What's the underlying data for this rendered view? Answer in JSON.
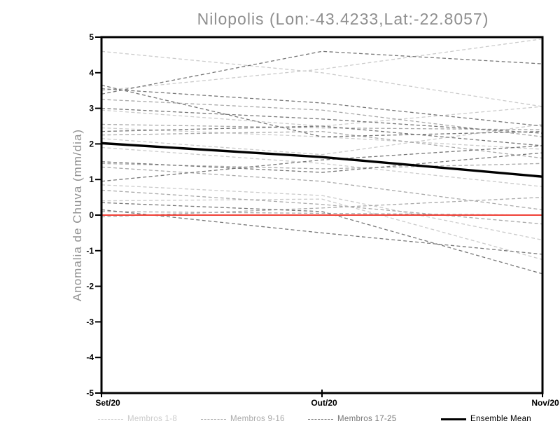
{
  "chart_data": {
    "type": "line",
    "title": "Nilopolis (Lon:-43.4233,Lat:-22.8057)",
    "ylabel": "Anomalia de Chuva (mm/dia)",
    "x_categories": [
      "Set/20",
      "Out/20",
      "Nov/20"
    ],
    "ylim": [
      -5,
      5
    ],
    "yticks": [
      -5,
      -4,
      -3,
      -2,
      -1,
      0,
      1,
      2,
      3,
      4,
      5
    ],
    "grid": false,
    "legend_position": "bottom",
    "axis_color": "#000000",
    "title_color": "#8f8f8f",
    "series_groups": [
      {
        "name": "Membros 1-8",
        "color": "#cbcbcb",
        "line_style": "dashed",
        "series": [
          [
            4.6,
            4.0,
            3.05
          ],
          [
            3.5,
            4.1,
            4.95
          ],
          [
            2.95,
            2.5,
            3.05
          ],
          [
            2.45,
            2.2,
            1.85
          ],
          [
            2.15,
            1.7,
            2.55
          ],
          [
            1.9,
            1.45,
            0.8
          ],
          [
            0.85,
            0.55,
            -0.7
          ],
          [
            0.4,
            0.45,
            -1.25
          ]
        ]
      },
      {
        "name": "Membros 9-16",
        "color": "#a9a9a9",
        "line_style": "dashed",
        "series": [
          [
            3.25,
            2.95,
            2.2
          ],
          [
            2.55,
            2.45,
            2.4
          ],
          [
            2.25,
            2.35,
            1.6
          ],
          [
            1.45,
            1.3,
            1.45
          ],
          [
            1.35,
            0.95,
            0.15
          ],
          [
            0.7,
            0.3,
            -0.25
          ],
          [
            0.1,
            0.05,
            0.0
          ],
          [
            -0.05,
            0.2,
            0.5
          ]
        ]
      },
      {
        "name": "Membros 17-25",
        "color": "#777777",
        "line_style": "dashed",
        "series": [
          [
            3.4,
            4.6,
            4.25
          ],
          [
            3.65,
            2.2,
            2.35
          ],
          [
            3.55,
            3.15,
            2.5
          ],
          [
            3.0,
            2.7,
            2.3
          ],
          [
            2.35,
            2.5,
            1.95
          ],
          [
            1.5,
            1.2,
            1.75
          ],
          [
            0.95,
            1.55,
            1.95
          ],
          [
            0.15,
            -0.5,
            -1.1
          ],
          [
            0.35,
            0.1,
            -1.65
          ]
        ]
      }
    ],
    "ensemble_mean": {
      "name": "Ensemble Mean",
      "color": "#000000",
      "line_style": "solid",
      "values": [
        2.02,
        1.63,
        1.08
      ]
    },
    "zero_line": {
      "color": "#f04137",
      "values": [
        0,
        0,
        0
      ]
    }
  }
}
